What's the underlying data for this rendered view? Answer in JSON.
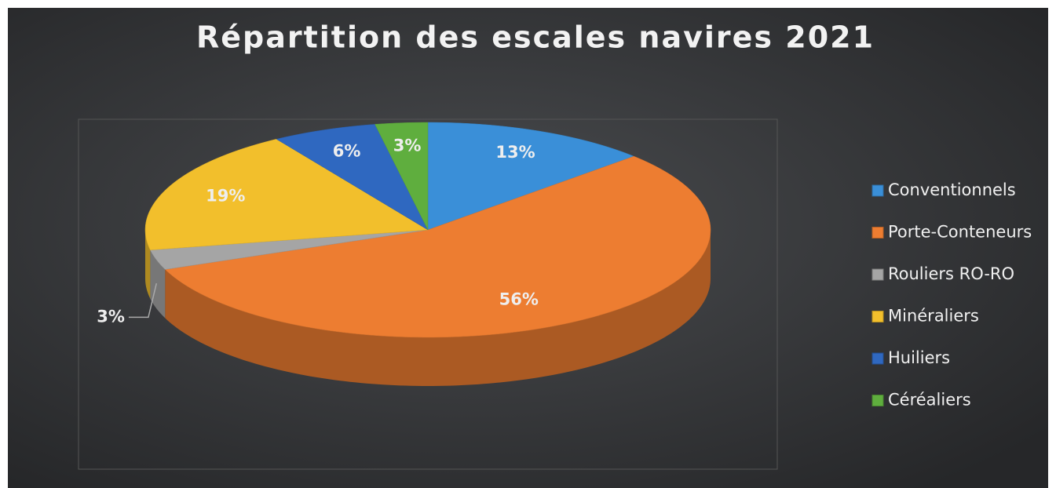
{
  "chart_data": {
    "type": "pie",
    "title": "Répartition des escales navires 2021",
    "categories": [
      "Conventionnels",
      "Porte-Conteneurs",
      "Rouliers RO-RO",
      "Minéraliers",
      "Huiliers",
      "Céréaliers"
    ],
    "values": [
      13,
      56,
      3,
      19,
      6,
      3
    ],
    "value_labels": [
      "13%",
      "56%",
      "3%",
      "19%",
      "6%",
      "3%"
    ],
    "colors": [
      "#3a8fd8",
      "#ed7d31",
      "#a5a5a5",
      "#f2bf2c",
      "#2f68c0",
      "#5fae3e"
    ],
    "legend": "right"
  }
}
